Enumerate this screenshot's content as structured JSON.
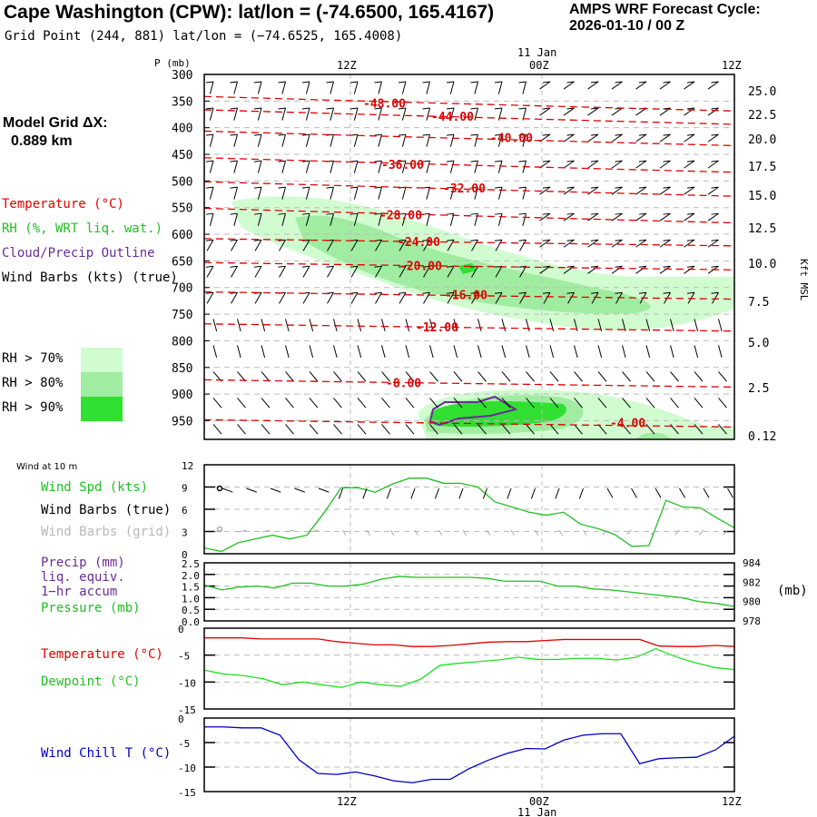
{
  "header": {
    "title": "Cape Washington (CPW):  lat/lon = (-74.6500, 165.4167)",
    "subtitle": "Grid Point (244, 881) lat/lon = (−74.6525, 165.4008)",
    "cycle_line1": "AMPS WRF Forecast Cycle:",
    "cycle_line2": "2026-01-10 / 00  Z",
    "grid_dx_label": "Model Grid ΔX:",
    "grid_dx_value": "0.889 km"
  },
  "legend": {
    "temperature": "Temperature (°C)",
    "rh": "RH (%, WRT liq. wat.)",
    "cloud": "Cloud/Precip Outline",
    "wind": "Wind Barbs (kts) (true)",
    "rh70": "RH > 70%",
    "rh80": "RH > 80%",
    "rh90": "RH > 90%",
    "colors": {
      "rh70": "#d0fcd0",
      "rh80": "#a0eca0",
      "rh90": "#30e030",
      "temp": "#e00000",
      "cloud": "#6a2c9a"
    }
  },
  "panel_labels": {
    "wind10m": "Wind at 10 m",
    "wind_spd": "Wind Spd (kts)",
    "barbs_true": "Wind Barbs (true)",
    "barbs_grid": "Wind Barbs (grid)",
    "precip1": "Precip (mm)",
    "precip2": "liq. equiv.",
    "precip3": "1−hr accum",
    "pressure": "Pressure (mb)",
    "pressure_unit": "(mb)",
    "temperature": "Temperature (°C)",
    "dewpoint": "Dewpoint (°C)",
    "windchill": "Wind Chill T (°C)"
  },
  "chart_data": [
    {
      "type": "heatmap",
      "title": "Time-height cross-section",
      "ylabel": "P (mb)",
      "ylabel_right": "Kft MSL",
      "x_ticks": [
        "12Z",
        "00Z",
        "12Z"
      ],
      "x_date_label": "11 Jan",
      "y_ticks": [
        "300",
        "350",
        "400",
        "450",
        "500",
        "550",
        "600",
        "650",
        "700",
        "750",
        "800",
        "850",
        "900",
        "950"
      ],
      "y_right_ticks": [
        "25.0",
        "22.5",
        "20.0",
        "17.5",
        "15.0",
        "12.5",
        "10.0",
        "7.5",
        "5.0",
        "2.5",
        "0.12"
      ],
      "ylim": [
        300,
        985
      ],
      "temperature_contours": [
        {
          "label": "-48.00",
          "p": 355
        },
        {
          "label": "-44.00",
          "p": 380
        },
        {
          "label": "-40.00",
          "p": 420
        },
        {
          "label": "-36.00",
          "p": 470
        },
        {
          "label": "-32.00",
          "p": 515
        },
        {
          "label": "-28.00",
          "p": 565
        },
        {
          "label": "-24.00",
          "p": 615
        },
        {
          "label": "-20.00",
          "p": 660
        },
        {
          "label": "-16.00",
          "p": 715
        },
        {
          "label": "-12.00",
          "p": 775
        },
        {
          "label": "-8.00",
          "p": 880
        },
        {
          "label": "-4.00",
          "p": 955
        }
      ]
    },
    {
      "type": "line",
      "title": "Wind Spd (kts)",
      "ylim": [
        0,
        12
      ],
      "y_ticks": [
        "0",
        "3",
        "6",
        "9",
        "12"
      ],
      "series": [
        {
          "name": "Wind Spd",
          "color": "#20c020",
          "values": [
            0.8,
            0.3,
            1.5,
            2.0,
            2.5,
            2.0,
            2.5,
            5.5,
            8.9,
            8.9,
            8.3,
            9.4,
            10.2,
            10.2,
            9.5,
            9.5,
            9.0,
            7.0,
            6.3,
            5.6,
            5.2,
            5.6,
            4.0,
            3.4,
            2.6,
            1.0,
            1.1,
            7.2,
            6.3,
            6.2,
            4.8,
            3.5
          ]
        }
      ]
    },
    {
      "type": "line",
      "title": "Pressure (mb)",
      "ylim_left": [
        0,
        2.5
      ],
      "y_ticks_left": [
        "0.0",
        "0.5",
        "1.0",
        "1.5",
        "2.0",
        "2.5"
      ],
      "ylim": [
        978,
        984
      ],
      "y_ticks_right": [
        "978",
        "980",
        "982",
        "984"
      ],
      "series": [
        {
          "name": "Pressure",
          "color": "#20c020",
          "values": [
            981.7,
            981.2,
            981.5,
            981.6,
            981.4,
            981.9,
            981.9,
            981.6,
            981.6,
            981.8,
            982.3,
            982.6,
            982.5,
            982.5,
            982.5,
            982.5,
            982.4,
            982.1,
            982.1,
            982.1,
            981.6,
            981.6,
            981.3,
            981.2,
            981.0,
            980.8,
            980.6,
            980.4,
            980.0,
            979.8,
            979.5
          ]
        }
      ]
    },
    {
      "type": "line",
      "title": "Temperature / Dewpoint",
      "ylim": [
        -15,
        0
      ],
      "y_ticks": [
        "0",
        "-5",
        "-10",
        "-15"
      ],
      "series": [
        {
          "name": "Temperature",
          "color": "#e00000",
          "values": [
            -1.8,
            -1.8,
            -1.8,
            -2.0,
            -2.0,
            -2.0,
            -2.0,
            -2.5,
            -2.8,
            -3.1,
            -3.1,
            -3.4,
            -3.4,
            -3.2,
            -2.9,
            -2.6,
            -2.5,
            -2.5,
            -2.3,
            -2.1,
            -2.1,
            -2.1,
            -2.1,
            -2.1,
            -3.3,
            -3.4,
            -3.4,
            -3.2,
            -3.4
          ]
        },
        {
          "name": "Dewpoint",
          "color": "#20e020",
          "values": [
            -7.8,
            -8.5,
            -8.8,
            -9.4,
            -10.5,
            -10.0,
            -10.5,
            -11.0,
            -10.0,
            -10.5,
            -10.8,
            -9.5,
            -6.9,
            -6.5,
            -6.2,
            -5.9,
            -5.4,
            -5.8,
            -5.8,
            -5.6,
            -5.6,
            -5.9,
            -5.4,
            -3.8,
            -5.3,
            -6.4,
            -7.3,
            -7.7
          ]
        }
      ]
    },
    {
      "type": "line",
      "title": "Wind Chill T (°C)",
      "ylim": [
        -15,
        0
      ],
      "y_ticks": [
        "0",
        "-5",
        "-10",
        "-15"
      ],
      "series": [
        {
          "name": "Wind Chill",
          "color": "#0000c0",
          "values": [
            -1.8,
            -1.8,
            -2.0,
            -2.0,
            -3.5,
            -8.5,
            -11.3,
            -11.5,
            -11.0,
            -11.8,
            -12.8,
            -13.2,
            -12.5,
            -12.5,
            -10.3,
            -8.6,
            -7.2,
            -6.2,
            -6.3,
            -4.5,
            -3.5,
            -3.2,
            -3.2,
            -9.3,
            -8.3,
            -8.1,
            -8.0,
            -6.5,
            -3.7
          ]
        }
      ]
    }
  ]
}
